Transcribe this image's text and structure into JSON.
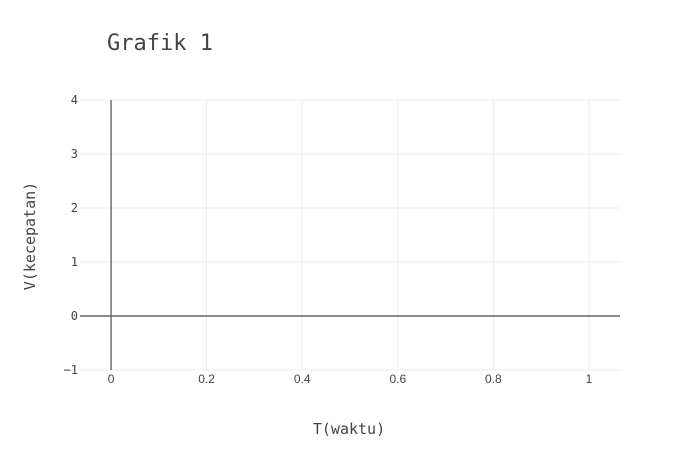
{
  "chart_data": {
    "type": "line",
    "title": "Grafik 1",
    "xlabel": "T(waktu)",
    "ylabel": "V(kecepatan)",
    "xlim": [
      -0.065,
      1.065
    ],
    "ylim": [
      -1,
      4
    ],
    "x_ticks": [
      0,
      0.2,
      0.4,
      0.6,
      0.8,
      1
    ],
    "x_tick_labels": [
      "0",
      "0.2",
      "0.4",
      "0.6",
      "0.8",
      "1"
    ],
    "y_ticks": [
      -1,
      0,
      1,
      2,
      3,
      4
    ],
    "y_tick_labels": [
      "−1",
      "0",
      "1",
      "2",
      "3",
      "4"
    ],
    "grid": true,
    "legend": "none",
    "series": [],
    "colors": {
      "background": "#ffffff",
      "grid": "#ececec",
      "zeroline": "#666666",
      "text": "#444444"
    }
  }
}
